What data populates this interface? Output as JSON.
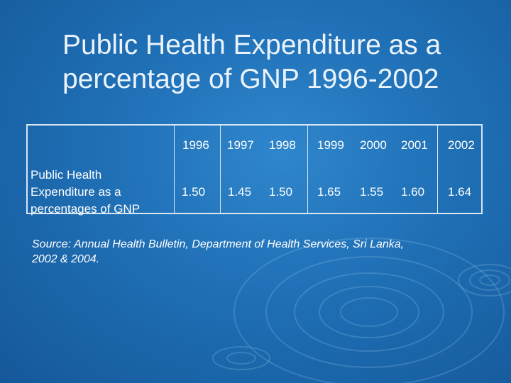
{
  "slide": {
    "title_line1": "Public Health Expenditure as a",
    "title_line2": "percentage of GNP 1996-2002"
  },
  "table": {
    "years": [
      "1996",
      "1997",
      "1998",
      "1999",
      "2000",
      "2001",
      "2002"
    ],
    "row_label": [
      "Public Health",
      "Expenditure as a",
      "percentages of GNP"
    ],
    "values": [
      "1.50",
      "1.45",
      "1.50",
      "1.65",
      "1.55",
      "1.60",
      "1.64"
    ]
  },
  "source": {
    "line1": "Source: Annual Health Bulletin, Department of Health Services, Sri Lanka,",
    "line2": "2002 & 2004."
  },
  "colors": {
    "background": "#1f6fb5",
    "text": "#ffffff",
    "table_border": "#d6e6f3"
  }
}
